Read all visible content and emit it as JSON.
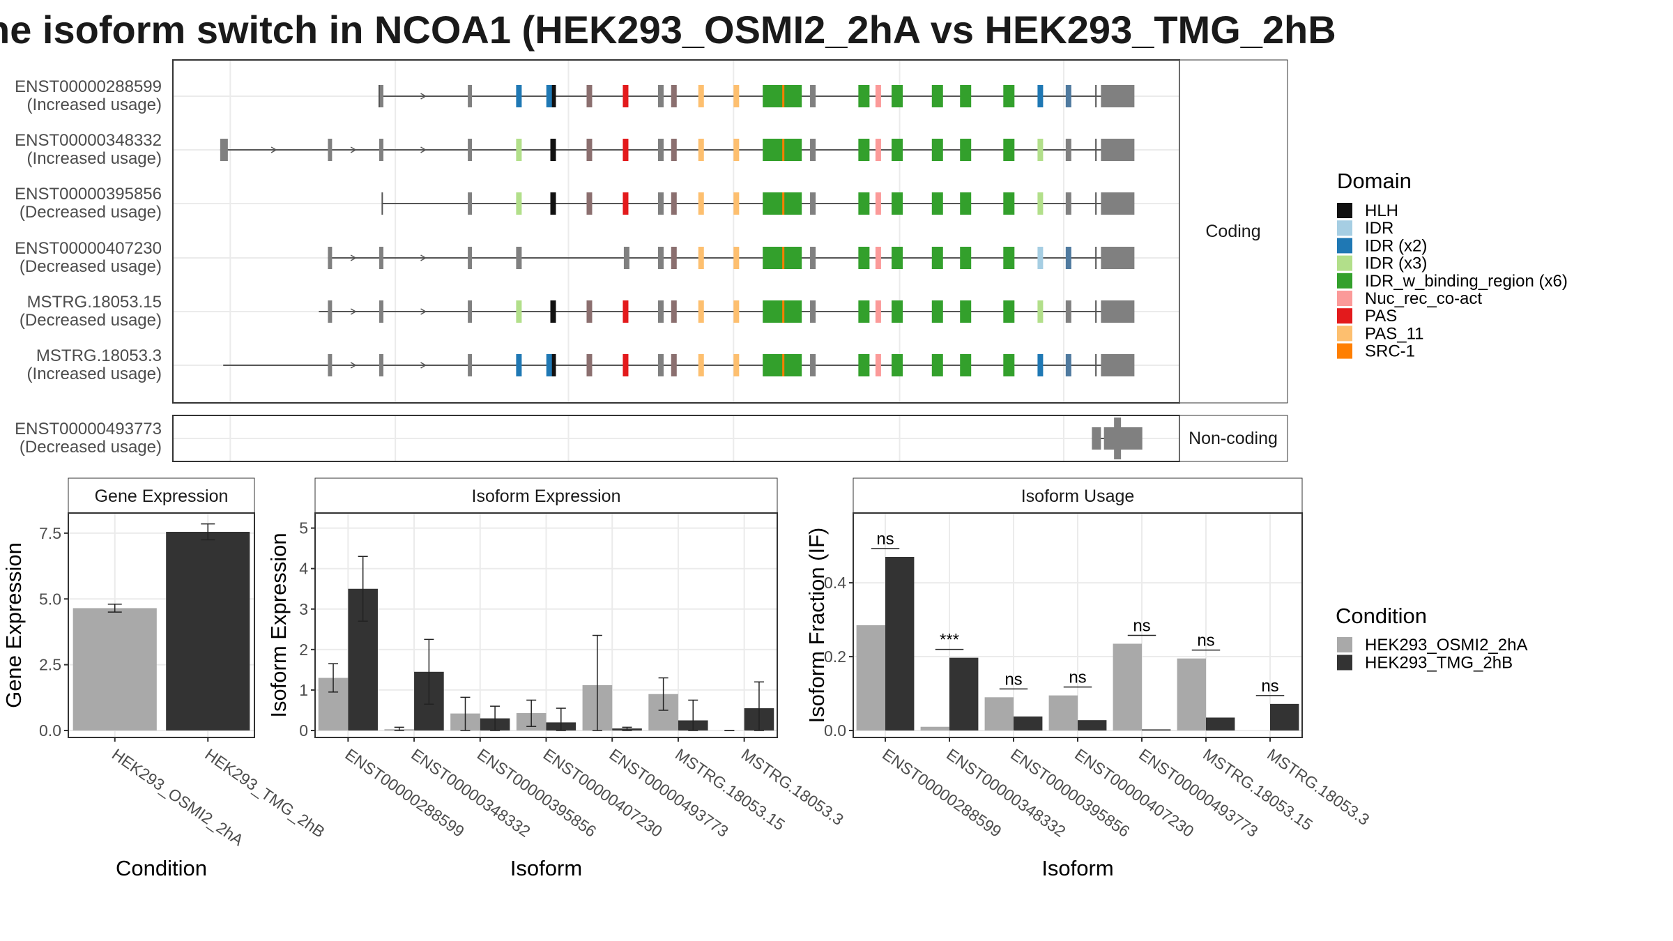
{
  "title": "he isoform switch in NCOA1 (HEK293_OSMI2_2hA vs HEK293_TMG_2hB",
  "facets": {
    "coding": "Coding",
    "noncoding": "Non-coding"
  },
  "legends": {
    "domain_title": "Domain",
    "domains": [
      {
        "name": "HLH",
        "color": "#111111"
      },
      {
        "name": "IDR",
        "color": "#A6CEE3"
      },
      {
        "name": "IDR (x2)",
        "color": "#1F78B4"
      },
      {
        "name": "IDR (x3)",
        "color": "#B2DF8A"
      },
      {
        "name": "IDR_w_binding_region (x6)",
        "color": "#33A02C"
      },
      {
        "name": "Nuc_rec_co-act",
        "color": "#FB9A99"
      },
      {
        "name": "PAS",
        "color": "#E31A1C"
      },
      {
        "name": "PAS_11",
        "color": "#FDBF6F"
      },
      {
        "name": "SRC-1",
        "color": "#FF7F00"
      }
    ],
    "condition_title": "Condition",
    "conditions": [
      {
        "name": "HEK293_OSMI2_2hA",
        "color": "#A9A9A9"
      },
      {
        "name": "HEK293_TMG_2hB",
        "color": "#333333"
      }
    ]
  },
  "transcripts": [
    {
      "id": "ENST00000288599",
      "status": "(Increased usage)",
      "facet": "coding",
      "start": 0.205,
      "domain_exons": [
        [
          "#1F78B4",
          0.341
        ],
        [
          "#111111",
          0.375
        ],
        [
          "#1F78B4",
          0.371
        ],
        [
          "#8B6F6F",
          0.411
        ],
        [
          "#E31A1C",
          0.447
        ],
        [
          "#808080",
          0.482
        ],
        [
          "#8B6F6F",
          0.495
        ],
        [
          "#FDBF6F",
          0.522
        ],
        [
          "#FDBF6F",
          0.557
        ],
        [
          "#33A02C",
          0.586
        ],
        [
          "#808080",
          0.633
        ],
        [
          "#33A02C",
          0.681
        ],
        [
          "#FB9A99",
          0.698
        ],
        [
          "#33A02C",
          0.714
        ],
        [
          "#33A02C",
          0.754
        ],
        [
          "#33A02C",
          0.782
        ],
        [
          "#33A02C",
          0.825
        ],
        [
          "#1F78B4",
          0.859
        ],
        [
          "#4F7A9F",
          0.887
        ]
      ]
    },
    {
      "id": "ENST00000348332",
      "status": "(Increased usage)",
      "facet": "coding",
      "start": 0.047,
      "domain_exons": [
        [
          "#B2DF8A",
          0.341
        ],
        [
          "#111111",
          0.375
        ],
        [
          "#8B6F6F",
          0.411
        ],
        [
          "#E31A1C",
          0.447
        ],
        [
          "#808080",
          0.482
        ],
        [
          "#8B6F6F",
          0.495
        ],
        [
          "#FDBF6F",
          0.522
        ],
        [
          "#FDBF6F",
          0.557
        ],
        [
          "#33A02C",
          0.586
        ],
        [
          "#808080",
          0.633
        ],
        [
          "#33A02C",
          0.681
        ],
        [
          "#FB9A99",
          0.698
        ],
        [
          "#33A02C",
          0.714
        ],
        [
          "#33A02C",
          0.754
        ],
        [
          "#33A02C",
          0.782
        ],
        [
          "#33A02C",
          0.825
        ],
        [
          "#B2DF8A",
          0.859
        ],
        [
          "#808080",
          0.887
        ]
      ]
    },
    {
      "id": "ENST00000395856",
      "status": "(Decreased usage)",
      "facet": "coding",
      "start": 0.208,
      "domain_exons": [
        [
          "#B2DF8A",
          0.341
        ],
        [
          "#111111",
          0.375
        ],
        [
          "#8B6F6F",
          0.411
        ],
        [
          "#E31A1C",
          0.447
        ],
        [
          "#808080",
          0.482
        ],
        [
          "#8B6F6F",
          0.495
        ],
        [
          "#FDBF6F",
          0.522
        ],
        [
          "#FDBF6F",
          0.557
        ],
        [
          "#33A02C",
          0.586
        ],
        [
          "#808080",
          0.633
        ],
        [
          "#33A02C",
          0.681
        ],
        [
          "#FB9A99",
          0.698
        ],
        [
          "#33A02C",
          0.714
        ],
        [
          "#33A02C",
          0.754
        ],
        [
          "#33A02C",
          0.782
        ],
        [
          "#33A02C",
          0.825
        ],
        [
          "#B2DF8A",
          0.859
        ],
        [
          "#808080",
          0.887
        ]
      ]
    },
    {
      "id": "ENST00000407230",
      "status": "(Decreased usage)",
      "facet": "coding",
      "start": 0.154,
      "domain_exons": [
        [
          "#808080",
          0.341
        ],
        [
          "#808080",
          0.448
        ],
        [
          "#808080",
          0.482
        ],
        [
          "#8B6F6F",
          0.495
        ],
        [
          "#FDBF6F",
          0.522
        ],
        [
          "#FDBF6F",
          0.557
        ],
        [
          "#33A02C",
          0.586
        ],
        [
          "#808080",
          0.633
        ],
        [
          "#33A02C",
          0.681
        ],
        [
          "#FB9A99",
          0.698
        ],
        [
          "#33A02C",
          0.714
        ],
        [
          "#33A02C",
          0.754
        ],
        [
          "#33A02C",
          0.782
        ],
        [
          "#33A02C",
          0.825
        ],
        [
          "#A6CEE3",
          0.859
        ],
        [
          "#4F7A9F",
          0.887
        ]
      ]
    },
    {
      "id": "MSTRG.18053.15",
      "status": "(Decreased usage)",
      "facet": "coding",
      "start": 0.145,
      "domain_exons": [
        [
          "#B2DF8A",
          0.341
        ],
        [
          "#111111",
          0.375
        ],
        [
          "#8B6F6F",
          0.411
        ],
        [
          "#E31A1C",
          0.447
        ],
        [
          "#808080",
          0.482
        ],
        [
          "#8B6F6F",
          0.495
        ],
        [
          "#FDBF6F",
          0.522
        ],
        [
          "#FDBF6F",
          0.557
        ],
        [
          "#33A02C",
          0.586
        ],
        [
          "#808080",
          0.633
        ],
        [
          "#33A02C",
          0.681
        ],
        [
          "#FB9A99",
          0.698
        ],
        [
          "#33A02C",
          0.714
        ],
        [
          "#33A02C",
          0.754
        ],
        [
          "#33A02C",
          0.782
        ],
        [
          "#33A02C",
          0.825
        ],
        [
          "#B2DF8A",
          0.859
        ],
        [
          "#808080",
          0.887
        ]
      ]
    },
    {
      "id": "MSTRG.18053.3",
      "status": "(Increased usage)",
      "facet": "coding",
      "start": 0.05,
      "domain_exons": [
        [
          "#1F78B4",
          0.341
        ],
        [
          "#111111",
          0.375
        ],
        [
          "#1F78B4",
          0.371
        ],
        [
          "#8B6F6F",
          0.411
        ],
        [
          "#E31A1C",
          0.447
        ],
        [
          "#808080",
          0.482
        ],
        [
          "#8B6F6F",
          0.495
        ],
        [
          "#FDBF6F",
          0.522
        ],
        [
          "#FDBF6F",
          0.557
        ],
        [
          "#33A02C",
          0.586
        ],
        [
          "#808080",
          0.633
        ],
        [
          "#33A02C",
          0.681
        ],
        [
          "#FB9A99",
          0.698
        ],
        [
          "#33A02C",
          0.714
        ],
        [
          "#33A02C",
          0.754
        ],
        [
          "#33A02C",
          0.782
        ],
        [
          "#33A02C",
          0.825
        ],
        [
          "#1F78B4",
          0.859
        ],
        [
          "#4F7A9F",
          0.887
        ]
      ]
    },
    {
      "id": "ENST00000493773",
      "status": "(Decreased usage)",
      "facet": "noncoding",
      "start": 0.913,
      "domain_exons": []
    }
  ],
  "chart_data": [
    {
      "type": "bar",
      "title": "Gene Expression",
      "xlabel": "Condition",
      "ylabel": "Gene Expression",
      "categories": [
        "HEK293_OSMI2_2hA",
        "HEK293_TMG_2hB"
      ],
      "values": [
        4.65,
        7.55
      ],
      "errors": [
        [
          4.5,
          4.8
        ],
        [
          7.25,
          7.85
        ]
      ],
      "ylim": [
        0,
        8.0
      ],
      "yticks": [
        0.0,
        2.5,
        5.0,
        7.5
      ],
      "yticklabels": [
        "0.0",
        "2.5",
        "5.0",
        "7.5"
      ]
    },
    {
      "type": "bar",
      "title": "Isoform Expression",
      "xlabel": "Isoform",
      "ylabel": "Isoform Expression",
      "categories": [
        "ENST00000288599",
        "ENST00000348332",
        "ENST00000395856",
        "ENST00000407230",
        "ENST00000493773",
        "MSTRG.18053.15",
        "MSTRG.18053.3"
      ],
      "series": [
        {
          "name": "HEK293_OSMI2_2hA",
          "values": [
            1.3,
            0.03,
            0.42,
            0.43,
            1.12,
            0.9,
            0.0
          ],
          "errors": [
            [
              0.95,
              1.65
            ],
            [
              0.0,
              0.08
            ],
            [
              0.0,
              0.82
            ],
            [
              0.1,
              0.75
            ],
            [
              0.0,
              2.35
            ],
            [
              0.5,
              1.3
            ],
            [
              0.0,
              0.0
            ]
          ]
        },
        {
          "name": "HEK293_TMG_2hB",
          "values": [
            3.5,
            1.45,
            0.3,
            0.2,
            0.05,
            0.25,
            0.55
          ],
          "errors": [
            [
              2.7,
              4.3
            ],
            [
              0.65,
              2.25
            ],
            [
              0.0,
              0.6
            ],
            [
              0.0,
              0.55
            ],
            [
              0.0,
              0.08
            ],
            [
              0.0,
              0.75
            ],
            [
              0.0,
              1.2
            ]
          ]
        }
      ],
      "ylim": [
        0,
        5.2
      ],
      "yticks": [
        0,
        1,
        2,
        3,
        4,
        5
      ]
    },
    {
      "type": "bar",
      "title": "Isoform Usage",
      "xlabel": "Isoform",
      "ylabel": "Isoform Fraction (IF)",
      "categories": [
        "ENST00000288599",
        "ENST00000348332",
        "ENST00000395856",
        "ENST00000407230",
        "ENST00000493773",
        "MSTRG.18053.15",
        "MSTRG.18053.3"
      ],
      "series": [
        {
          "name": "HEK293_OSMI2_2hA",
          "values": [
            0.285,
            0.01,
            0.09,
            0.095,
            0.235,
            0.195,
            0.0
          ]
        },
        {
          "name": "HEK293_TMG_2hB",
          "values": [
            0.47,
            0.197,
            0.038,
            0.028,
            0.003,
            0.035,
            0.072
          ]
        }
      ],
      "significance": [
        "ns",
        "***",
        "ns",
        "ns",
        "ns",
        "ns",
        "ns"
      ],
      "ylim": [
        0,
        0.57
      ],
      "yticks": [
        0.0,
        0.2,
        0.4
      ],
      "yticklabels": [
        "0.0",
        "0.2",
        "0.4"
      ]
    }
  ]
}
